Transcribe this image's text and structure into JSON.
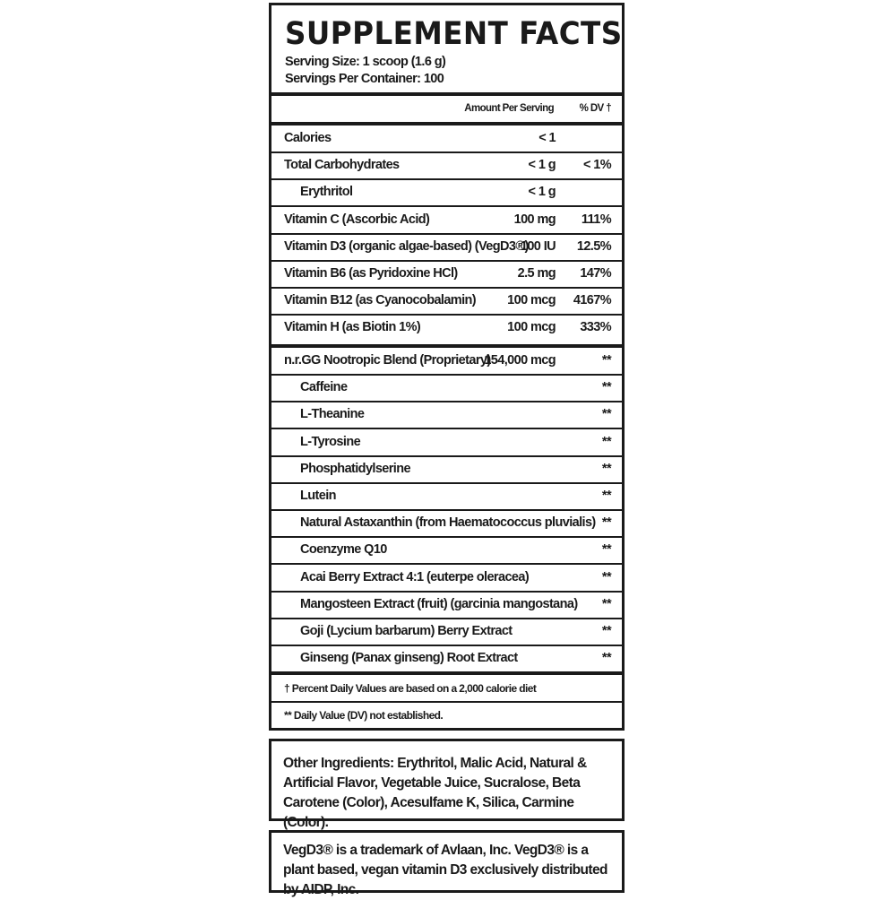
{
  "title": "SUPPLEMENT FACTS",
  "serving_size": "Serving Size: 1 scoop (1.6 g)",
  "servings_per_container": "Servings Per Container: 100",
  "header": {
    "amount": "Amount Per Serving",
    "dv": "% DV †"
  },
  "nutrients": [
    {
      "name": "Calories",
      "amount": "< 1",
      "dv": ""
    },
    {
      "name": "Total Carbohydrates",
      "amount": "< 1 g",
      "dv": "< 1%"
    },
    {
      "name": "Erythritol",
      "amount": "< 1 g",
      "dv": "",
      "indent": true
    },
    {
      "name": "Vitamin C (Ascorbic Acid)",
      "amount": "100 mg",
      "dv": "111%"
    },
    {
      "name": "Vitamin D3 (organic algae-based) (VegD3®)",
      "amount": "100 IU",
      "dv": "12.5%"
    },
    {
      "name": "Vitamin B6 (as Pyridoxine HCl)",
      "amount": "2.5 mg",
      "dv": "147%"
    },
    {
      "name": "Vitamin B12 (as Cyanocobalamin)",
      "amount": "100 mcg",
      "dv": "4167%"
    },
    {
      "name": "Vitamin H (as Biotin 1%)",
      "amount": "100 mcg",
      "dv": "333%"
    }
  ],
  "blend": [
    {
      "name": "n.r.GG Nootropic Blend (Proprietary)",
      "amount": "154,000 mcg",
      "dv": "**"
    },
    {
      "name": "Caffeine",
      "amount": "",
      "dv": "**",
      "indent": true
    },
    {
      "name": "L-Theanine",
      "amount": "",
      "dv": "**",
      "indent": true
    },
    {
      "name": "L-Tyrosine",
      "amount": "",
      "dv": "**",
      "indent": true
    },
    {
      "name": "Phosphatidylserine",
      "amount": "",
      "dv": "**",
      "indent": true
    },
    {
      "name": "Lutein",
      "amount": "",
      "dv": "**",
      "indent": true
    },
    {
      "name": "Natural Astaxanthin (from Haematococcus pluvialis)",
      "amount": "",
      "dv": "**",
      "indent": true
    },
    {
      "name": "Coenzyme Q10",
      "amount": "",
      "dv": "**",
      "indent": true
    },
    {
      "name": "Acai Berry Extract 4:1 (euterpe oleracea)",
      "amount": "",
      "dv": "**",
      "indent": true
    },
    {
      "name": "Mangosteen Extract (fruit) (garcinia mangostana)",
      "amount": "",
      "dv": "**",
      "indent": true
    },
    {
      "name": "Goji (Lycium barbarum) Berry Extract",
      "amount": "",
      "dv": "**",
      "indent": true
    },
    {
      "name": "Ginseng (Panax ginseng) Root Extract",
      "amount": "",
      "dv": "**",
      "indent": true
    }
  ],
  "footnotes": [
    "† Percent Daily Values are based on a 2,000 calorie diet",
    "** Daily Value (DV) not established."
  ],
  "other_ingredients": "Other Ingredients: Erythritol, Malic Acid, Natural & Artificial Flavor, Vegetable Juice, Sucralose, Beta Carotene (Color), Acesulfame K, Silica, Carmine (Color).",
  "trademark": "VegD3® is a trademark of Avlaan, Inc. VegD3® is a plant based, vegan vitamin D3 exclusively distributed by AIDP, Inc."
}
